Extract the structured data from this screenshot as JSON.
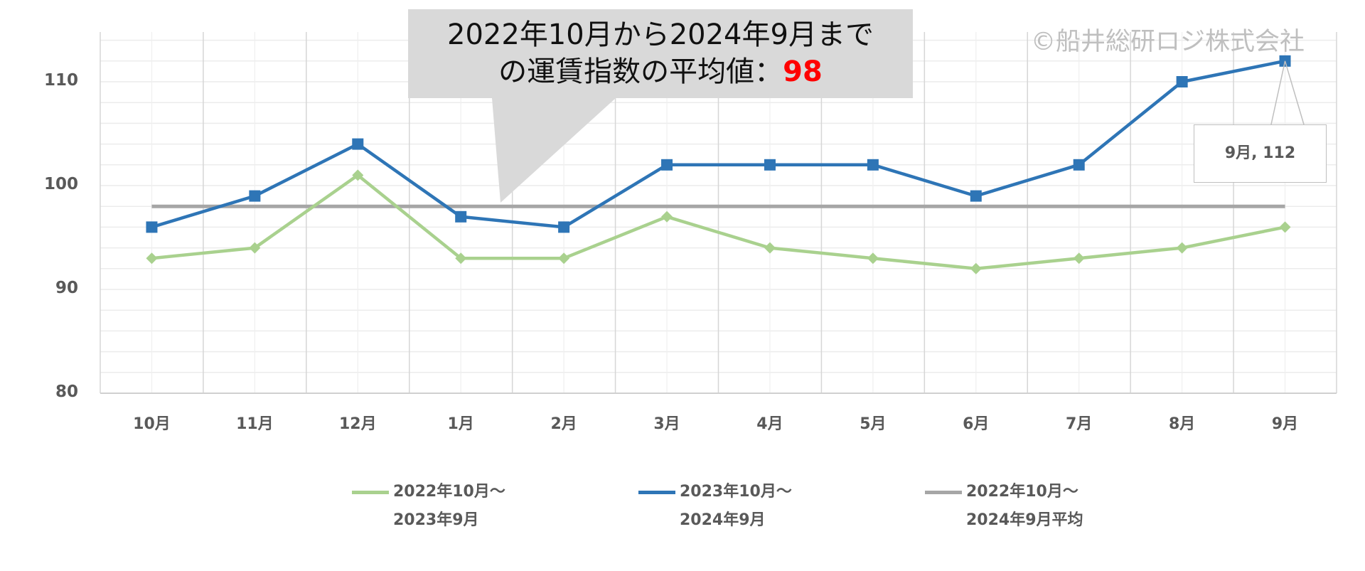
{
  "chart_data": {
    "type": "line",
    "title": "",
    "xlabel": "",
    "ylabel": "",
    "categories": [
      "10月",
      "11月",
      "12月",
      "1月",
      "2月",
      "3月",
      "4月",
      "5月",
      "6月",
      "7月",
      "8月",
      "9月"
    ],
    "series": [
      {
        "name": "2022年10月～2023年9月",
        "color": "#a9d18e",
        "marker": "diamond",
        "values": [
          93,
          94,
          101,
          93,
          93,
          97,
          94,
          93,
          92,
          93,
          94,
          96
        ]
      },
      {
        "name": "2023年10月～2024年9月",
        "color": "#2e75b6",
        "marker": "square",
        "values": [
          96,
          99,
          104,
          97,
          96,
          102,
          102,
          102,
          99,
          102,
          110,
          112
        ]
      },
      {
        "name": "2022年10月～2024年9月平均",
        "color": "#a6a6a6",
        "marker": "none",
        "values": [
          98,
          98,
          98,
          98,
          98,
          98,
          98,
          98,
          98,
          98,
          98,
          98
        ]
      }
    ],
    "ylim": [
      80,
      115
    ],
    "yticks": [
      80,
      90,
      100,
      110
    ],
    "grid": true,
    "legend_position": "bottom",
    "annotations": [
      {
        "type": "callout",
        "text": "2022年10月から2024年9月までの運賃指数の平均値：98"
      },
      {
        "type": "data_label",
        "text": "9月, 112"
      },
      {
        "type": "watermark",
        "text": "©船井総研ロジ株式会社"
      }
    ]
  },
  "callout": {
    "line1": "2022年10月から2024年9月まで",
    "line2_prefix": "の運賃指数の平均値：",
    "line2_value": "98"
  },
  "watermark": "©船井総研ロジ株式会社",
  "data_label": "9月, 112",
  "legend": [
    {
      "line1": "2022年10月～",
      "line2": "2023年9月"
    },
    {
      "line1": "2023年10月～",
      "line2": "2024年9月"
    },
    {
      "line1": "2022年10月～",
      "line2": "2024年9月平均"
    }
  ]
}
